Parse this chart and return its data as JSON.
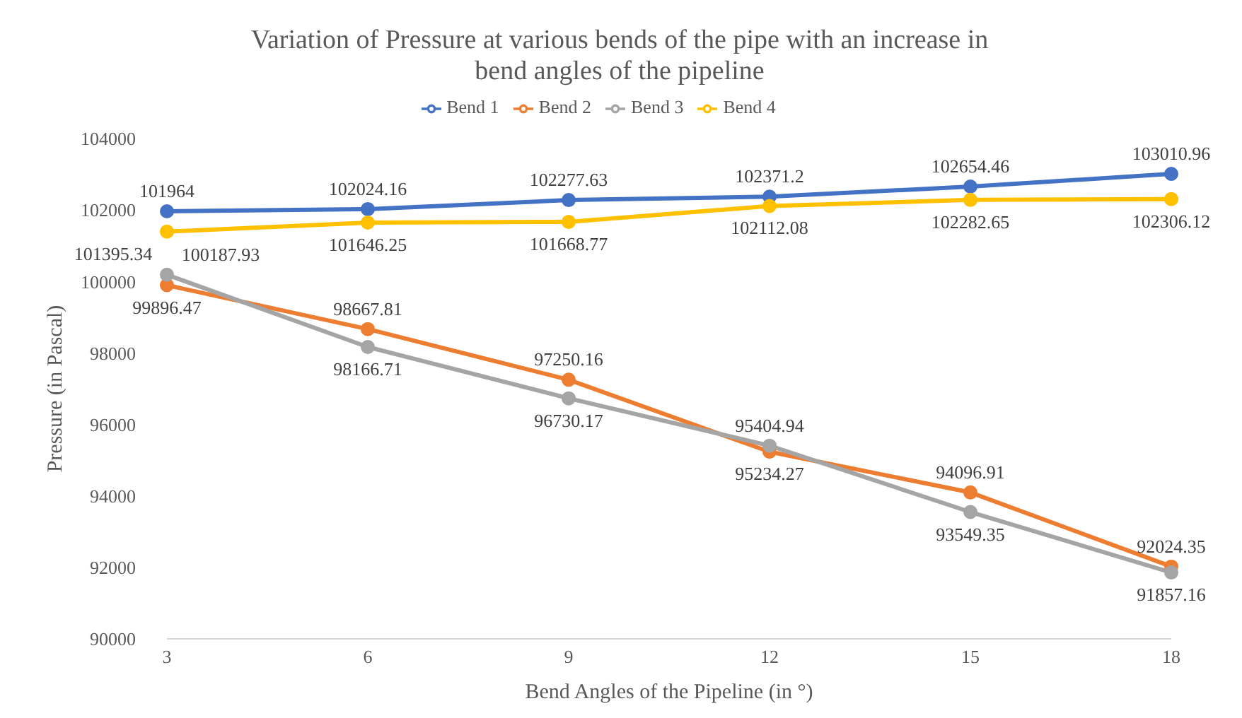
{
  "chart_data": {
    "type": "line",
    "title": "Variation of Pressure at various bends of the pipe with an increase in bend angles of the pipeline",
    "xlabel": "Bend Angles of the Pipeline (in °)",
    "ylabel": "Pressure (in Pascal)",
    "categories": [
      "3",
      "6",
      "9",
      "12",
      "15",
      "18"
    ],
    "series": [
      {
        "name": "Bend 1",
        "color": "#4472c4",
        "values": [
          101964,
          102024.16,
          102277.63,
          102371.2,
          102654.46,
          103010.96
        ]
      },
      {
        "name": "Bend 2",
        "color": "#ed7d31",
        "values": [
          99896.47,
          98667.81,
          97250.16,
          95234.27,
          94096.91,
          92024.35
        ]
      },
      {
        "name": "Bend 3",
        "color": "#a5a5a5",
        "values": [
          100187.93,
          98166.71,
          96730.17,
          95404.94,
          93549.35,
          91857.16
        ]
      },
      {
        "name": "Bend 4",
        "color": "#ffc000",
        "values": [
          101395.34,
          101646.25,
          101668.77,
          102112.08,
          102282.65,
          102306.12
        ]
      }
    ],
    "ylim": [
      90000,
      104000
    ],
    "yticks": [
      90000,
      92000,
      94000,
      96000,
      98000,
      100000,
      102000,
      104000
    ],
    "grid": false,
    "legend": "top",
    "marker": "circle",
    "line_style": "solid",
    "data_labels": true
  }
}
